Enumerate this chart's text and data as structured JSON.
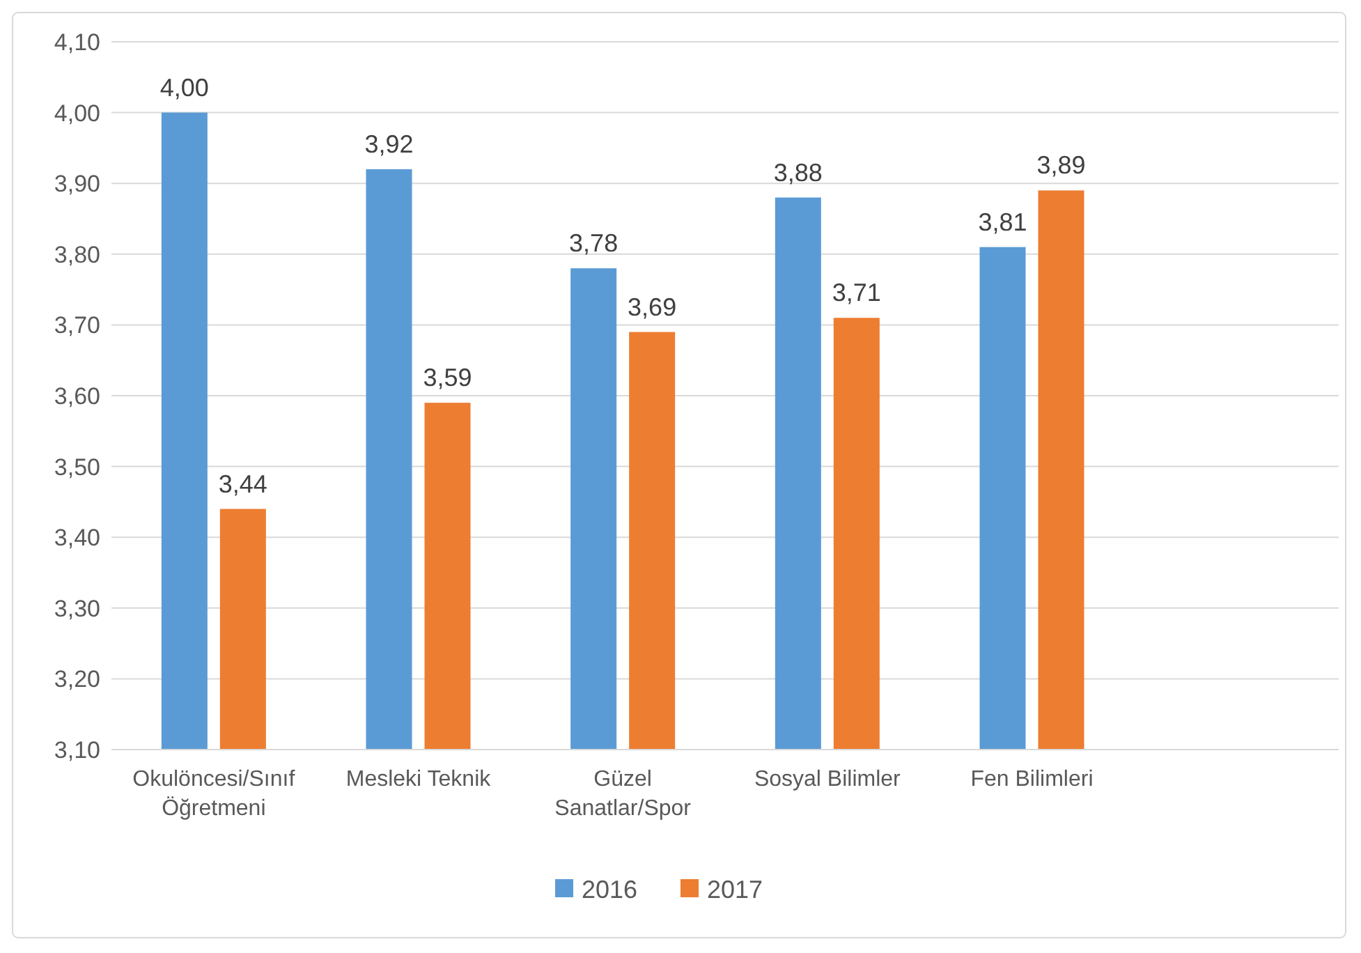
{
  "chart_data": {
    "type": "bar",
    "categories": [
      "Okulöncesi/Sınıf Öğretmeni",
      "Mesleki Teknik",
      "Güzel Sanatlar/Spor",
      "Sosyal Bilimler",
      "Fen Bilimleri",
      null
    ],
    "series": [
      {
        "name": "2016",
        "color": "#5b9bd5",
        "values": [
          4.0,
          3.92,
          3.78,
          3.88,
          3.81,
          null
        ],
        "value_labels": [
          "4,00",
          "3,92",
          "3,78",
          "3,88",
          "3,81",
          null
        ]
      },
      {
        "name": "2017",
        "color": "#ed7d31",
        "values": [
          3.44,
          3.59,
          3.69,
          3.71,
          3.89,
          null
        ],
        "value_labels": [
          "3,44",
          "3,59",
          "3,69",
          "3,71",
          "3,89",
          null
        ]
      }
    ],
    "ylim": [
      3.1,
      4.1
    ],
    "yticks": [
      {
        "value": 3.1,
        "label": "3,10"
      },
      {
        "value": 3.2,
        "label": "3,20"
      },
      {
        "value": 3.3,
        "label": "3,30"
      },
      {
        "value": 3.4,
        "label": "3,40"
      },
      {
        "value": 3.5,
        "label": "3,50"
      },
      {
        "value": 3.6,
        "label": "3,60"
      },
      {
        "value": 3.7,
        "label": "3,70"
      },
      {
        "value": 3.8,
        "label": "3,80"
      },
      {
        "value": 3.9,
        "label": "3,90"
      },
      {
        "value": 4.0,
        "label": "4,00"
      },
      {
        "value": 4.1,
        "label": "4,10"
      }
    ],
    "grid": "y",
    "legend": "bottom"
  }
}
